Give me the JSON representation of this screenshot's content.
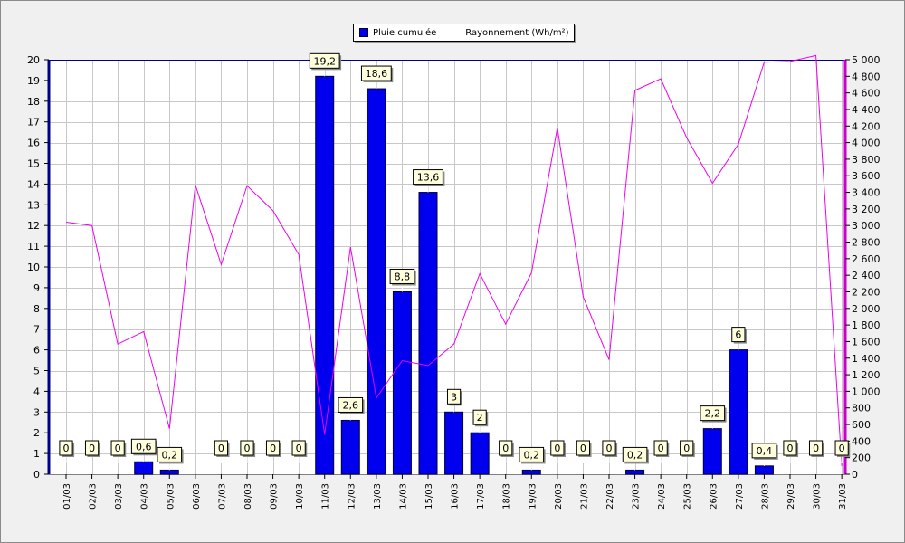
{
  "chart_data": {
    "type": "bar",
    "categories": [
      "01/03",
      "02/03",
      "03/03",
      "04/03",
      "05/03",
      "06/03",
      "07/03",
      "08/03",
      "09/03",
      "10/03",
      "11/03",
      "12/03",
      "13/03",
      "14/03",
      "15/03",
      "16/03",
      "17/03",
      "18/03",
      "19/03",
      "20/03",
      "21/03",
      "22/03",
      "23/03",
      "24/03",
      "25/03",
      "26/03",
      "27/03",
      "28/03",
      "29/03",
      "30/03",
      "31/03"
    ],
    "series": [
      {
        "name": "Pluie cumulée",
        "type": "bar",
        "axis": "left",
        "values": [
          0,
          0,
          0,
          0.6,
          0.2,
          0,
          0,
          0,
          0,
          0,
          19.2,
          2.6,
          18.6,
          8.8,
          13.6,
          3,
          2,
          0,
          0.2,
          0,
          0,
          0,
          0.2,
          0,
          0,
          2.2,
          6,
          0.4,
          0,
          0,
          0
        ],
        "labels": [
          "0",
          "0",
          "0",
          "0,6",
          "0,2",
          "",
          "0",
          "0",
          "0",
          "0",
          "19,2",
          "2,6",
          "18,6",
          "8,8",
          "13,6",
          "3",
          "2",
          "0",
          "0,2",
          "0",
          "0",
          "0",
          "0,2",
          "0",
          "0",
          "2,2",
          "6",
          "0,4",
          "0",
          "0",
          "0"
        ]
      },
      {
        "name": "Rayonnement (Wh/m²)",
        "type": "line",
        "axis": "right",
        "values": [
          3040,
          3000,
          1570,
          1720,
          550,
          3490,
          2530,
          3480,
          3180,
          2650,
          480,
          2740,
          920,
          1370,
          1310,
          1570,
          2420,
          1810,
          2430,
          4180,
          2140,
          1380,
          4630,
          4770,
          4060,
          3510,
          3980,
          4970,
          4980,
          5050,
          100
        ]
      }
    ],
    "y_left": {
      "min": 0,
      "max": 20,
      "ticks": [
        "0",
        "1",
        "2",
        "3",
        "4",
        "5",
        "6",
        "7",
        "8",
        "9",
        "10",
        "11",
        "12",
        "13",
        "14",
        "15",
        "16",
        "17",
        "18",
        "19",
        "20"
      ]
    },
    "y_right": {
      "min": 0,
      "max": 5000,
      "ticks": [
        "0",
        "200",
        "400",
        "600",
        "800",
        "1 000",
        "1 200",
        "1 400",
        "1 600",
        "1 800",
        "2 000",
        "2 200",
        "2 400",
        "2 600",
        "2 800",
        "3 000",
        "3 200",
        "3 400",
        "3 600",
        "3 800",
        "4 000",
        "4 200",
        "4 400",
        "4 600",
        "4 800",
        "5 000"
      ]
    },
    "grid": true,
    "legend_position": "top-center",
    "colors": {
      "bar": "#0000ee",
      "line": "#ee00ee",
      "left_axis": "#00008b",
      "right_axis": "#cc00cc",
      "label_bg": "#ffffdd"
    }
  }
}
